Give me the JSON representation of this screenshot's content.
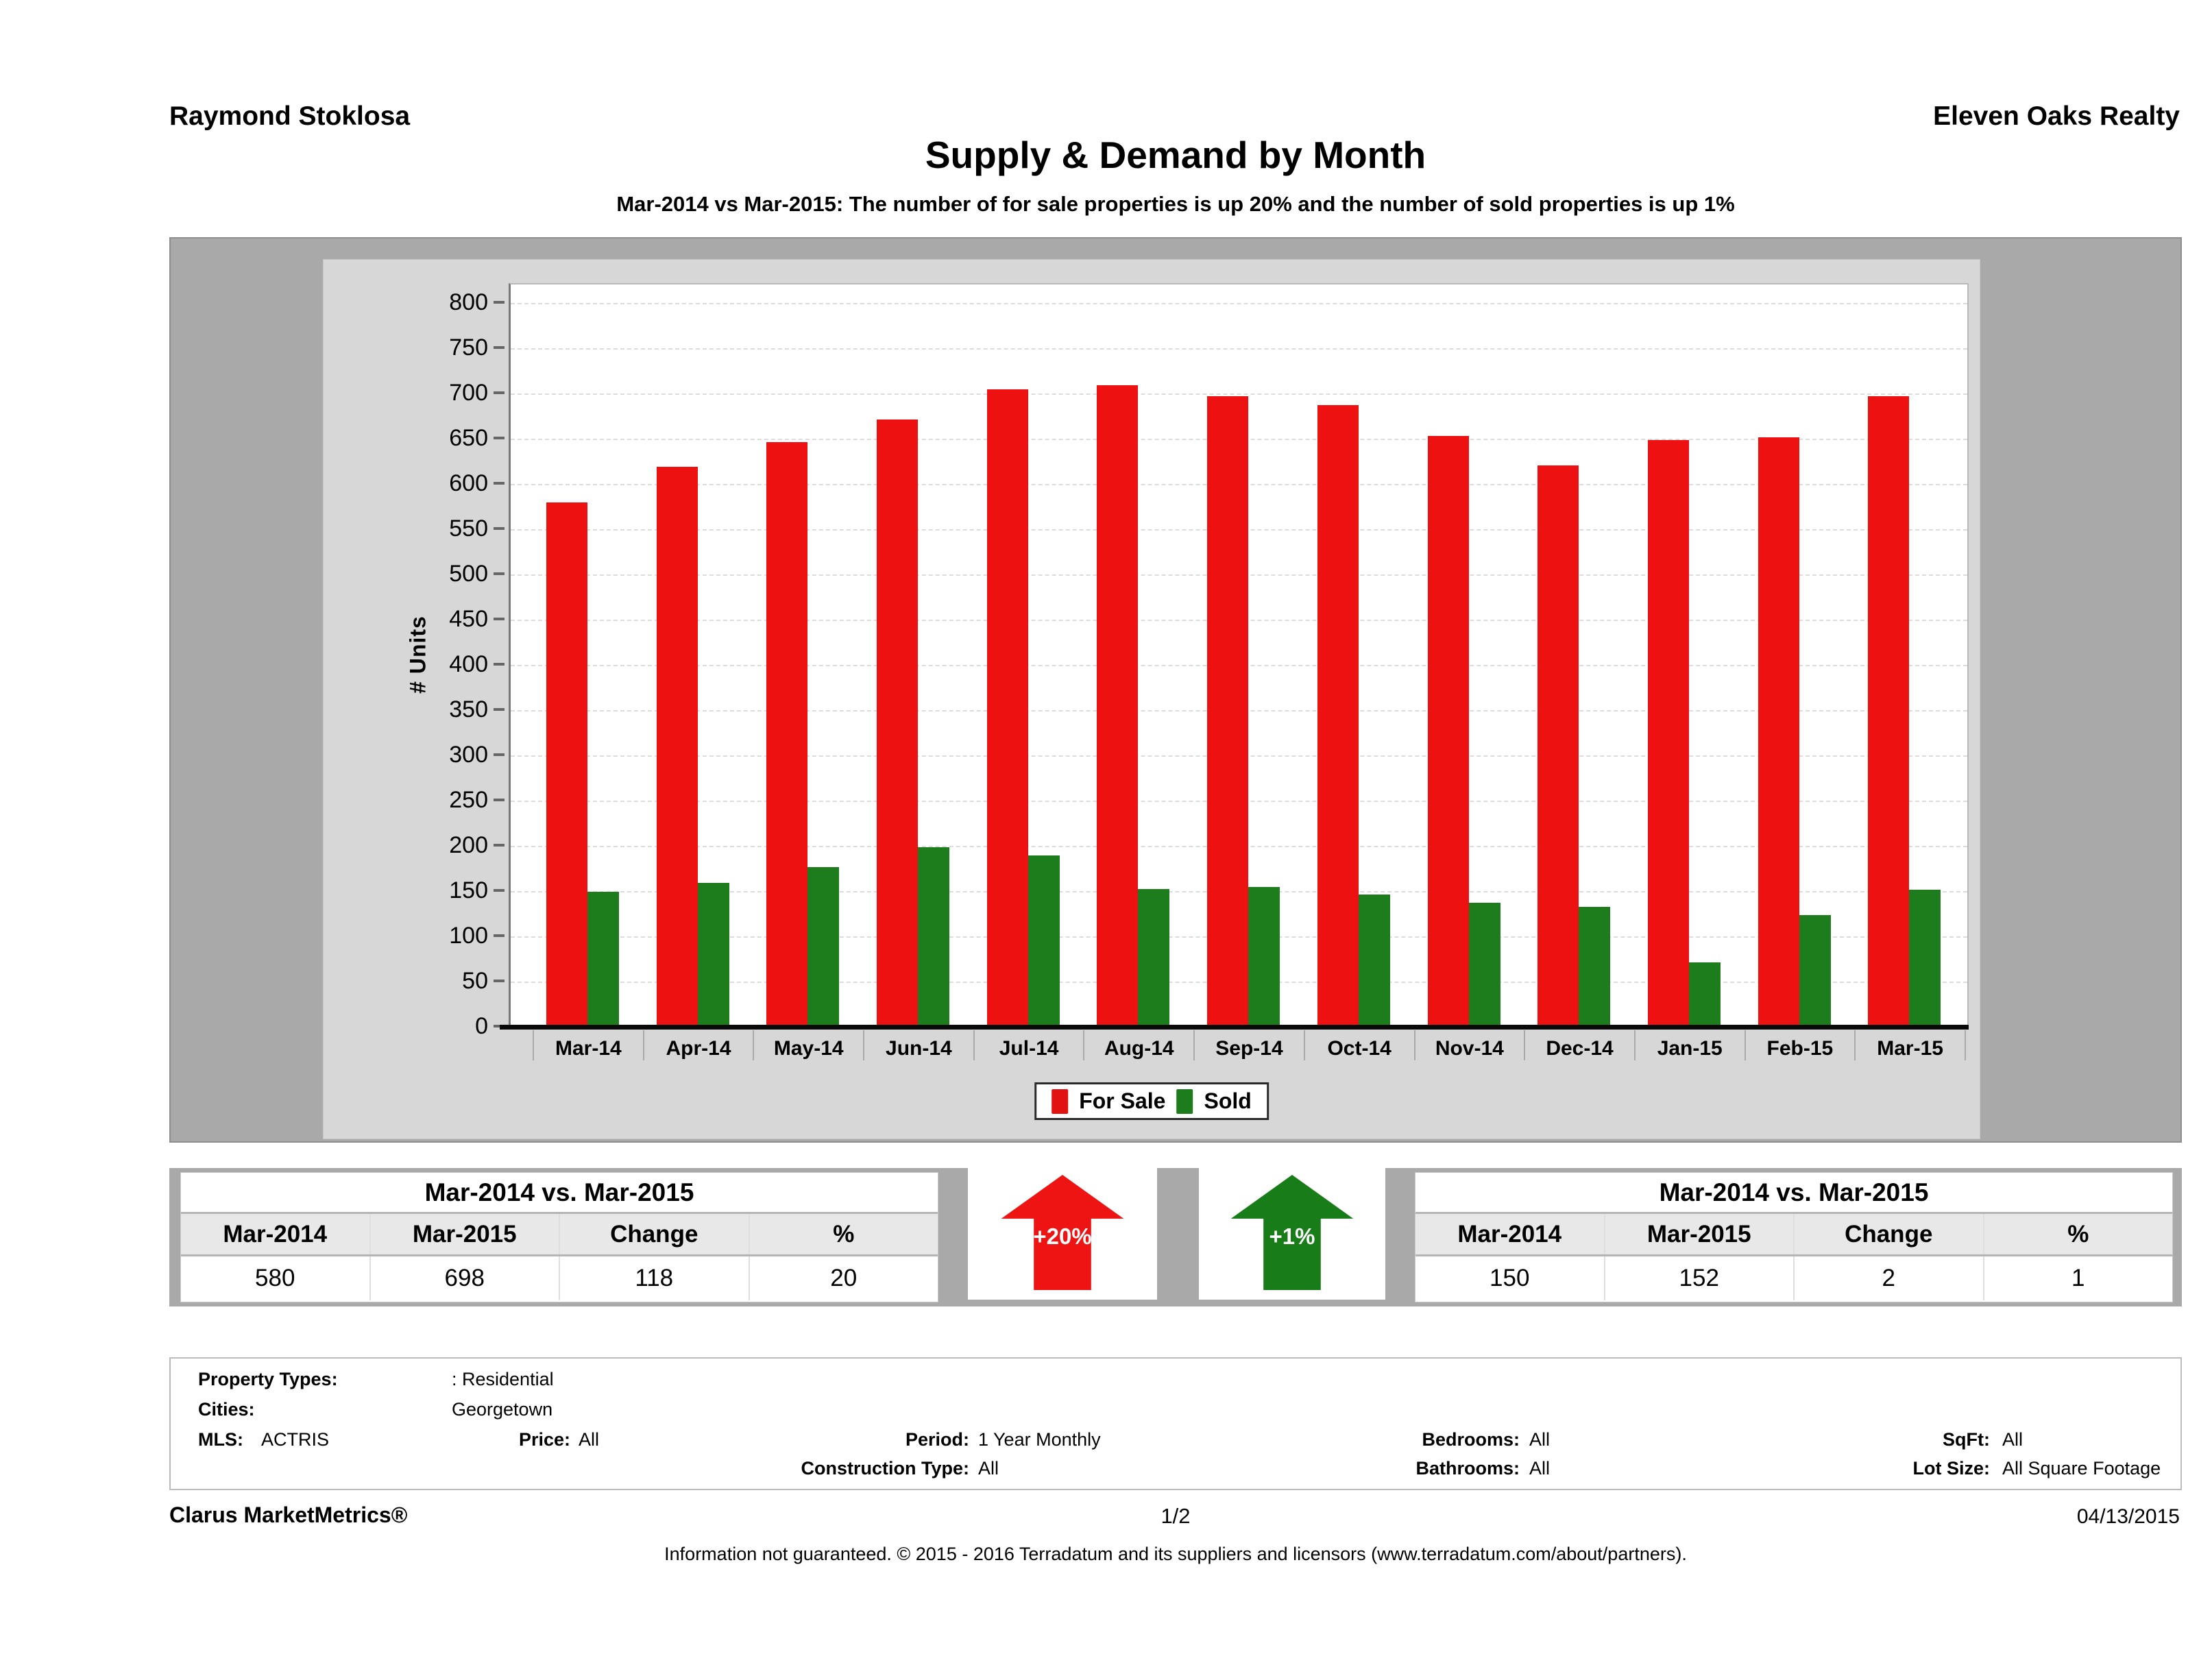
{
  "header": {
    "agent": "Raymond Stoklosa",
    "company": "Eleven Oaks Realty"
  },
  "title": "Supply & Demand by Month",
  "subtitle": "Mar-2014 vs Mar-2015: The number of for sale properties is up 20% and the number of sold properties is up 1%",
  "chart_data": {
    "type": "bar",
    "title": "Supply & Demand by Month",
    "xlabel": "",
    "ylabel": "# Units",
    "ylim": [
      0,
      800
    ],
    "ytick_step": 50,
    "grid": true,
    "legend_position": "bottom",
    "categories": [
      "Mar-14",
      "Apr-14",
      "May-14",
      "Jun-14",
      "Jul-14",
      "Aug-14",
      "Sep-14",
      "Oct-14",
      "Nov-14",
      "Dec-14",
      "Jan-15",
      "Feb-15",
      "Mar-15"
    ],
    "series": [
      {
        "name": "For Sale",
        "color": "#ee1111",
        "values": [
          580,
          620,
          647,
          672,
          705,
          710,
          698,
          688,
          654,
          621,
          649,
          652,
          698
        ]
      },
      {
        "name": "Sold",
        "color": "#1d7d1d",
        "values": [
          150,
          160,
          177,
          199,
          190,
          153,
          155,
          147,
          138,
          133,
          72,
          124,
          152
        ]
      }
    ]
  },
  "supply_table": {
    "title": "Mar-2014 vs. Mar-2015",
    "headers": [
      "Mar-2014",
      "Mar-2015",
      "Change",
      "%"
    ],
    "values": [
      "580",
      "698",
      "118",
      "20"
    ]
  },
  "sold_table": {
    "title": "Mar-2014 vs. Mar-2015",
    "headers": [
      "Mar-2014",
      "Mar-2015",
      "Change",
      "%"
    ],
    "values": [
      "150",
      "152",
      "2",
      "1"
    ]
  },
  "arrows": {
    "supply": {
      "label": "+20%",
      "color": "#ee1414"
    },
    "sold": {
      "label": "+1%",
      "color": "#187c18"
    }
  },
  "filters": {
    "property_types_label": "Property Types:",
    "property_types_value": ": Residential",
    "cities_label": "Cities:",
    "cities_value": "Georgetown",
    "mls_label": "MLS:",
    "mls_value": "ACTRIS",
    "price_label": "Price:",
    "price_value": "All",
    "period_label": "Period:",
    "period_value": "1 Year Monthly",
    "bedrooms_label": "Bedrooms:",
    "bedrooms_value": "All",
    "sqft_label": "SqFt:",
    "sqft_value": "All",
    "construction_label": "Construction Type:",
    "construction_value": "All",
    "bathrooms_label": "Bathrooms:",
    "bathrooms_value": "All",
    "lot_label": "Lot Size:",
    "lot_value": "All Square Footage"
  },
  "footer": {
    "brand": "Clarus MarketMetrics®",
    "page": "1/2",
    "date": "04/13/2015",
    "disclaimer": "Information not guaranteed. © 2015 - 2016 Terradatum and its suppliers and licensors (www.terradatum.com/about/partners)."
  }
}
